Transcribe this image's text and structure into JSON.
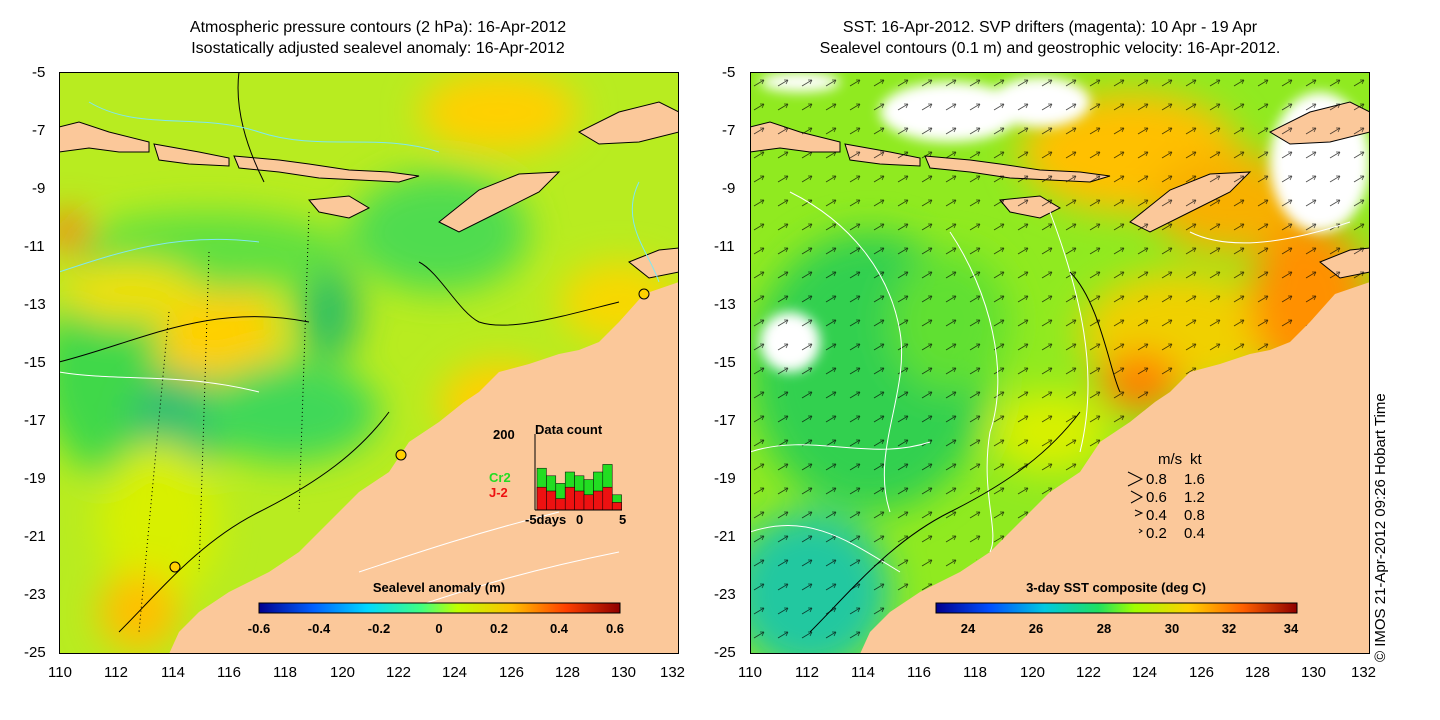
{
  "left_panel": {
    "title_line1": "Atmospheric pressure contours (2 hPa): 16-Apr-2012",
    "title_line2": "Isostatically adjusted sealevel anomaly: 16-Apr-2012",
    "colorbar_label": "Sealevel anomaly (m)",
    "colorbar_ticks": [
      "-0.6",
      "-0.4",
      "-0.2",
      "0",
      "0.2",
      "0.4",
      "0.6"
    ],
    "inset": {
      "title": "Data count",
      "ymax_label": "200",
      "series": [
        "Cr2",
        "J-2"
      ],
      "series_colors": [
        "#22dd22",
        "#ee1111"
      ],
      "x_labels": [
        "-5days",
        "0",
        "5"
      ],
      "bars_cr2": [
        0.55,
        0.45,
        0.35,
        0.5,
        0.45,
        0.4,
        0.5,
        0.6,
        0.2
      ],
      "bars_j2": [
        0.3,
        0.25,
        0.15,
        0.3,
        0.25,
        0.2,
        0.25,
        0.3,
        0.1
      ]
    }
  },
  "right_panel": {
    "title_line1": "SST: 16-Apr-2012. SVP drifters (magenta): 10 Apr - 19 Apr",
    "title_line2": "Sealevel contours (0.1 m) and geostrophic velocity: 16-Apr-2012.",
    "colorbar_label": "3-day SST composite (deg C)",
    "colorbar_ticks": [
      "24",
      "26",
      "28",
      "30",
      "32",
      "34"
    ],
    "velocity_legend": {
      "header_ms": "m/s",
      "header_kt": "kt",
      "rows": [
        {
          "ms": "0.8",
          "kt": "1.6"
        },
        {
          "ms": "0.6",
          "kt": "1.2"
        },
        {
          "ms": "0.4",
          "kt": "0.8"
        },
        {
          "ms": "0.2",
          "kt": "0.4"
        }
      ]
    }
  },
  "axes": {
    "lat_ticks": [
      "-5",
      "-7",
      "-9",
      "-11",
      "-13",
      "-15",
      "-17",
      "-19",
      "-21",
      "-23",
      "-25"
    ],
    "lon_ticks": [
      "110",
      "112",
      "114",
      "116",
      "118",
      "120",
      "122",
      "124",
      "126",
      "128",
      "130",
      "132"
    ]
  },
  "credit": "© IMOS 21-Apr-2012 09:26 Hobart Time",
  "colors": {
    "land": "#fbc89a",
    "sla_scale": [
      "#00008f",
      "#0060ff",
      "#00d8ff",
      "#40ff80",
      "#c0ff00",
      "#ffc000",
      "#ff4000",
      "#8f0000"
    ],
    "sst_scale": [
      "#00008f",
      "#0050ff",
      "#00c8e0",
      "#20e060",
      "#a0ff00",
      "#ffd000",
      "#ff6000",
      "#8f0000"
    ]
  }
}
